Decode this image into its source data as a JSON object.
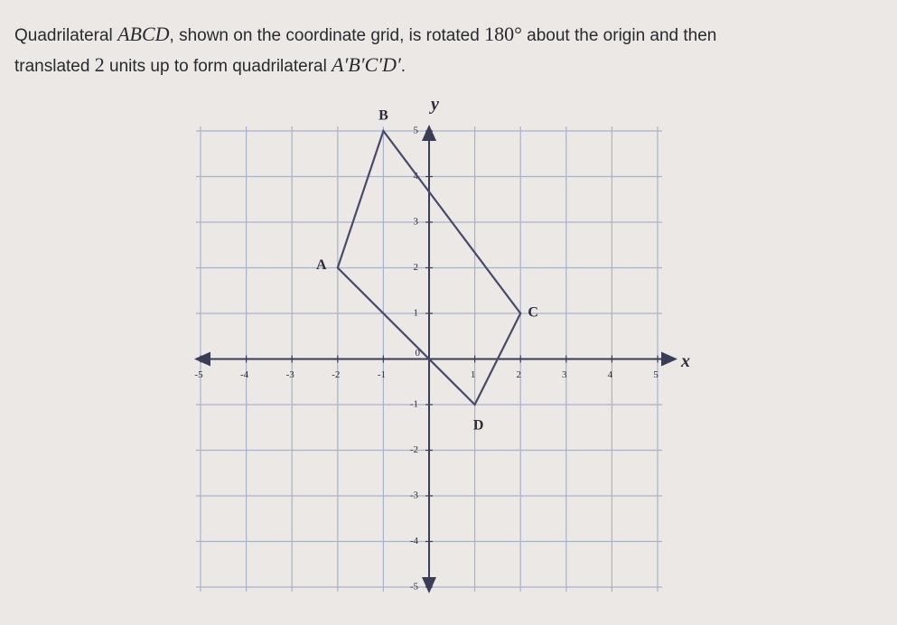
{
  "question": [
    "Quadrilateral ",
    "ABCD",
    ", shown on the coordinate grid, is rotated ",
    "180°",
    " about the origin and then",
    "translated ",
    "2",
    " units up to form quadrilateral ",
    "A′B′C′D′",
    "."
  ],
  "graph": {
    "x_label": "x",
    "y_label": "y",
    "xlim": [
      -5,
      5
    ],
    "ylim": [
      -5,
      5
    ],
    "xticks": [
      -5,
      -4,
      -3,
      -2,
      -1,
      1,
      2,
      3,
      4,
      5
    ],
    "yticks": [
      -5,
      -4,
      -3,
      -2,
      -1,
      1,
      2,
      3,
      4,
      5
    ],
    "origin": 0,
    "vertices": [
      {
        "label": "A",
        "x": -2,
        "y": 2
      },
      {
        "label": "B",
        "x": -1,
        "y": 5
      },
      {
        "label": "C",
        "x": 2,
        "y": 1
      },
      {
        "label": "D",
        "x": 1,
        "y": -1
      }
    ]
  }
}
